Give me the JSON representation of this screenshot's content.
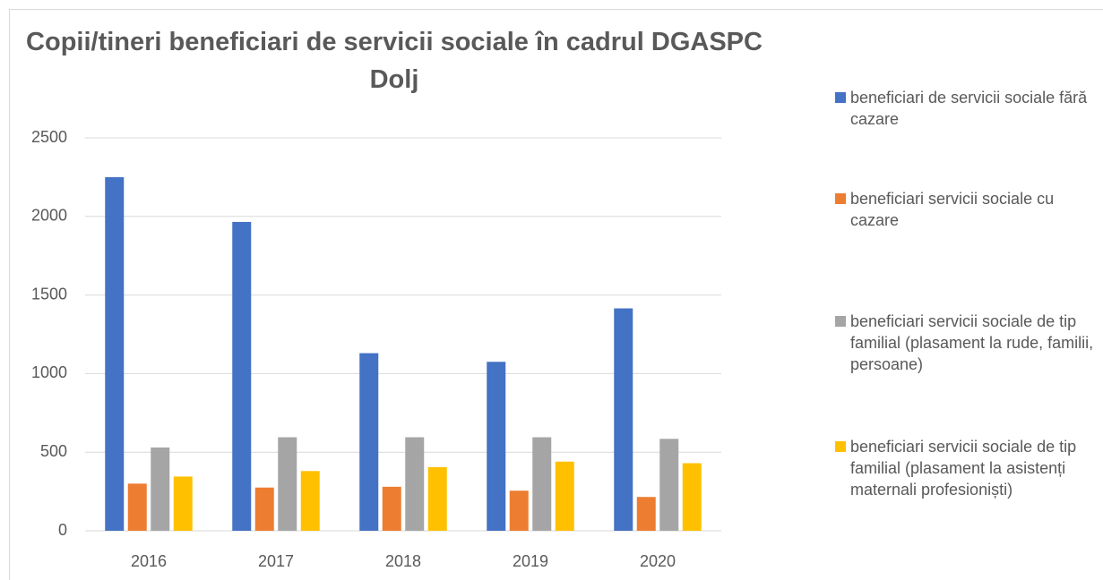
{
  "chart_data": {
    "type": "bar",
    "title": "Copii/tineri beneficiari de servicii sociale în cadrul DGASPC Dolj",
    "categories": [
      "2016",
      "2017",
      "2018",
      "2019",
      "2020"
    ],
    "series": [
      {
        "name": "beneficiari de servicii sociale fără cazare",
        "color": "#4472c4",
        "values": [
          2250,
          1965,
          1130,
          1075,
          1415
        ]
      },
      {
        "name": "beneficiari servicii sociale cu cazare",
        "color": "#ed7d31",
        "values": [
          300,
          275,
          280,
          255,
          215
        ]
      },
      {
        "name": "beneficiari servicii sociale de tip familial (plasament la rude, familii, persoane)",
        "color": "#a5a5a5",
        "values": [
          530,
          595,
          595,
          595,
          585
        ]
      },
      {
        "name": "beneficiari servicii sociale de tip familial (plasament la asistenți maternali profesioniști)",
        "color": "#ffc000",
        "values": [
          345,
          380,
          405,
          440,
          430
        ]
      }
    ],
    "ylim": [
      0,
      2500
    ],
    "yticks": [
      0,
      500,
      1000,
      1500,
      2000,
      2500
    ],
    "grid": true,
    "legend": "right"
  }
}
